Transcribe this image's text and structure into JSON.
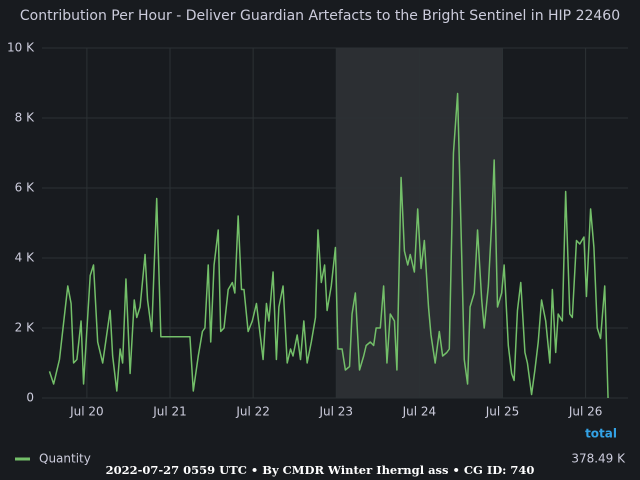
{
  "chart_data": {
    "type": "line",
    "title": "Contribution Per Hour - Deliver Guardian Artefacts to the Bright Sentinel in HIP 22460",
    "x": [
      19.55,
      19.6,
      19.67,
      19.77,
      19.81,
      19.84,
      19.88,
      19.93,
      19.96,
      20.04,
      20.08,
      20.13,
      20.19,
      20.28,
      20.31,
      20.36,
      20.4,
      20.43,
      20.47,
      20.52,
      20.57,
      20.6,
      20.64,
      20.7,
      20.73,
      20.78,
      20.84,
      20.89,
      21.24,
      21.28,
      21.34,
      21.39,
      21.42,
      21.46,
      21.49,
      21.53,
      21.58,
      21.61,
      21.65,
      21.7,
      21.75,
      21.78,
      21.82,
      21.86,
      21.89,
      21.94,
      21.99,
      22.04,
      22.07,
      22.12,
      22.16,
      22.19,
      22.24,
      22.28,
      22.31,
      22.36,
      22.41,
      22.45,
      22.48,
      22.53,
      22.57,
      22.61,
      22.65,
      22.7,
      22.75,
      22.78,
      22.82,
      22.86,
      22.89,
      22.94,
      22.99,
      23.02,
      23.07,
      23.11,
      23.16,
      23.19,
      23.23,
      23.28,
      23.33,
      23.36,
      23.41,
      23.45,
      23.48,
      23.53,
      23.57,
      23.61,
      23.65,
      23.7,
      23.73,
      23.78,
      23.82,
      23.86,
      23.89,
      23.94,
      23.98,
      24.02,
      24.06,
      24.11,
      24.14,
      24.19,
      24.24,
      24.28,
      24.33,
      24.36,
      24.41,
      24.46,
      24.51,
      24.54,
      24.58,
      24.61,
      24.66,
      24.7,
      24.75,
      24.78,
      24.83,
      24.87,
      24.9,
      24.94,
      24.99,
      25.02,
      25.07,
      25.11,
      25.14,
      25.18,
      25.22,
      25.27,
      25.3,
      25.35,
      25.39,
      25.43,
      25.47,
      25.52,
      25.57,
      25.6,
      25.64,
      25.67,
      25.72,
      25.76,
      25.81,
      25.84,
      25.89,
      25.93,
      25.98,
      26.01,
      26.06,
      26.1,
      26.14,
      26.18,
      26.23,
      26.27
    ],
    "series": [
      {
        "name": "Quantity",
        "color": "#73bf69",
        "total": "378.49 K",
        "values": [
          760,
          400,
          1100,
          3200,
          2700,
          1000,
          1100,
          2200,
          400,
          3500,
          3800,
          1600,
          1000,
          2500,
          1200,
          200,
          1400,
          1000,
          3400,
          700,
          2800,
          2300,
          2600,
          4100,
          2800,
          1900,
          5700,
          1750,
          1750,
          200,
          1200,
          1900,
          2000,
          3800,
          1600,
          3800,
          4800,
          1900,
          2000,
          3100,
          3300,
          3000,
          5200,
          3100,
          3100,
          1900,
          2200,
          2700,
          2100,
          1100,
          2700,
          2200,
          3600,
          1100,
          2600,
          3200,
          1000,
          1400,
          1200,
          1800,
          1100,
          2200,
          1000,
          1600,
          2300,
          4800,
          3300,
          3800,
          2500,
          3200,
          4300,
          1400,
          1400,
          800,
          900,
          2400,
          3000,
          800,
          1200,
          1500,
          1600,
          1500,
          2000,
          2000,
          3200,
          1000,
          2400,
          2200,
          800,
          6300,
          4200,
          3800,
          4100,
          3600,
          5400,
          3700,
          4500,
          2600,
          1800,
          1000,
          1900,
          1200,
          1300,
          1400,
          7000,
          8700,
          4000,
          1100,
          400,
          2600,
          3000,
          4800,
          2800,
          2000,
          3200,
          5000,
          6800,
          2600,
          3000,
          3800,
          1500,
          700,
          500,
          2500,
          3300,
          1300,
          1000,
          100,
          800,
          1600,
          2800,
          2200,
          1000,
          3100,
          1300,
          2400,
          2200,
          5900,
          2400,
          2300,
          4500,
          4400,
          4600,
          2900,
          5400,
          4300,
          2000,
          1700,
          3200,
          0
        ]
      }
    ],
    "xlim": [
      19.46,
      26.51
    ],
    "xticks": [
      {
        "value": 20,
        "label": "Jul 20"
      },
      {
        "value": 21,
        "label": "Jul 21"
      },
      {
        "value": 22,
        "label": "Jul 22"
      },
      {
        "value": 23,
        "label": "Jul 23"
      },
      {
        "value": 24,
        "label": "Jul 24"
      },
      {
        "value": 25,
        "label": "Jul 25"
      },
      {
        "value": 26,
        "label": "Jul 26"
      }
    ],
    "ylim": [
      0,
      10000
    ],
    "yticks": [
      0,
      {
        "value": 2000,
        "label": "2 K"
      },
      {
        "value": 4000,
        "label": "4 K"
      },
      {
        "value": 6000,
        "label": "6 K"
      },
      {
        "value": 8000,
        "label": "8 K"
      },
      {
        "value": 10000,
        "label": "10 K"
      }
    ],
    "grid": true,
    "shaded_region": [
      23,
      25
    ],
    "legend_header": "total",
    "footer": "2022-07-27 0559 UTC • By CMDR Winter Iherngl ass • CG ID: 740"
  }
}
